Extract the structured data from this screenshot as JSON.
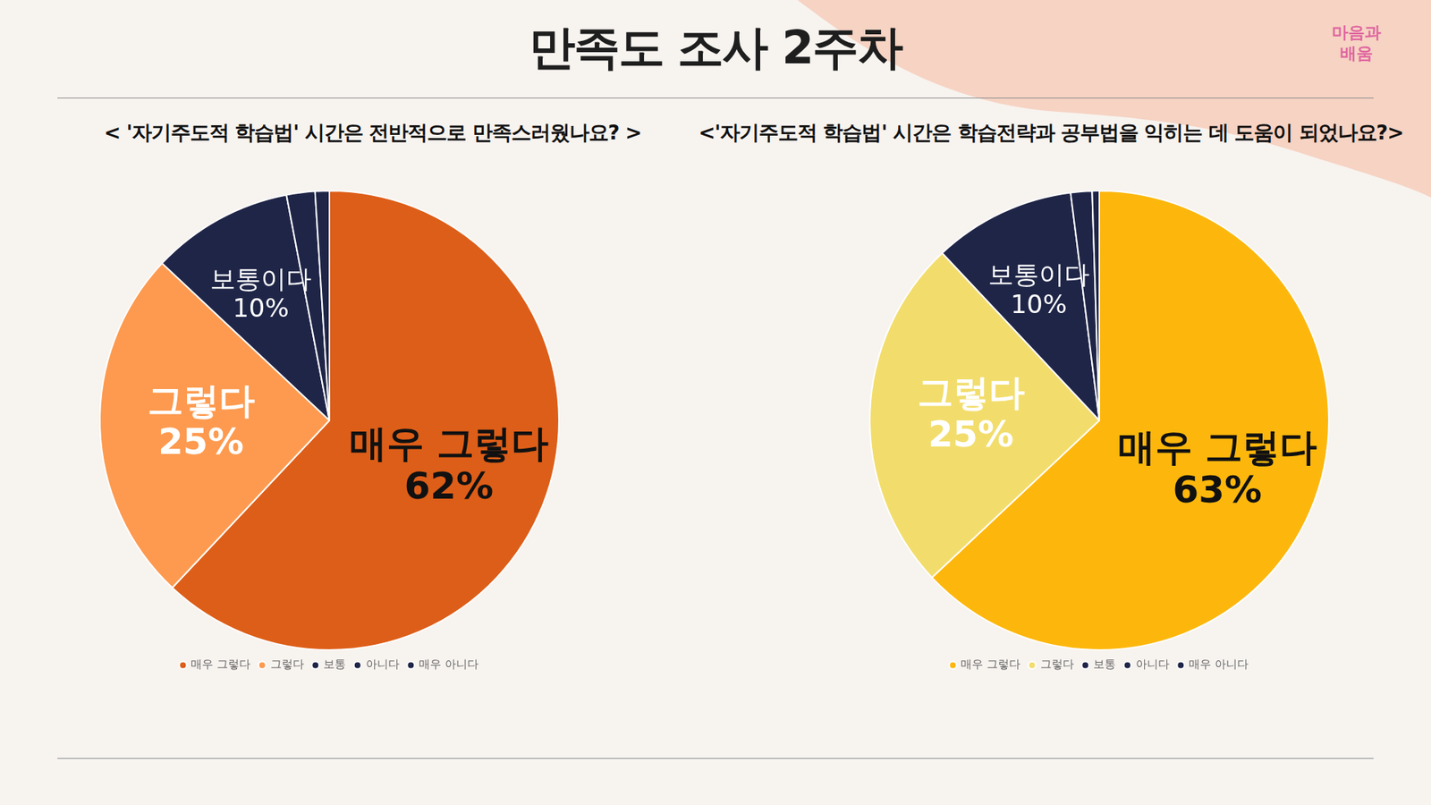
{
  "header": {
    "title": "만족도 조사 2주차",
    "logo": "마음과 배움"
  },
  "chart_data": [
    {
      "type": "pie",
      "title": "< '자기주도적 학습법' 시간은 전반적으로 만족스러웠나요?  >",
      "categories": [
        "매우 그렇다",
        "그렇다",
        "보통",
        "아니다",
        "매우 아니다"
      ],
      "values": [
        62,
        25,
        10,
        2,
        1
      ],
      "colors": [
        "#dd5e18",
        "#fd9a4f",
        "#1f2547",
        "#1f2547",
        "#1f2547"
      ],
      "slice_labels": [
        "매우 그렇다",
        "그렇다",
        "보통이다",
        null,
        null
      ],
      "value_labels": [
        "62%",
        "25%",
        "10%",
        null,
        null
      ],
      "data_labels": true,
      "legend": "bottom"
    },
    {
      "type": "pie",
      "title": "<'자기주도적 학습법' 시간은 학습전략과 공부법을 익히는 데 도움이 되었나요?>",
      "categories": [
        "매우 그렇다",
        "그렇다",
        "보통",
        "아니다",
        "매우 아니다"
      ],
      "values": [
        63,
        25,
        10,
        1.5,
        0.5
      ],
      "colors": [
        "#fdb70c",
        "#f2dd6c",
        "#1f2547",
        "#1f2547",
        "#1f2547"
      ],
      "slice_labels": [
        "매우 그렇다",
        "그렇다",
        "보통이다",
        null,
        null
      ],
      "value_labels": [
        "63%",
        "25%",
        "10%",
        null,
        null
      ],
      "data_labels": true,
      "legend": "bottom"
    }
  ]
}
